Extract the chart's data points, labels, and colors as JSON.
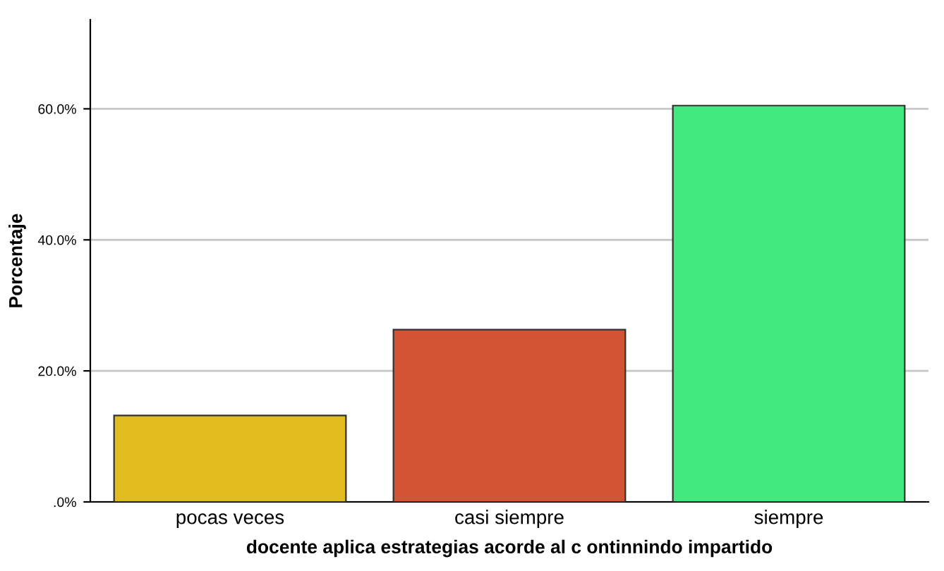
{
  "chart_data": {
    "type": "bar",
    "xlabel": "docente aplica estrategias acorde al c ontinnindo impartido",
    "ylabel": "Porcentaje",
    "categories": [
      "pocas veces",
      "casi siempre",
      "siempre"
    ],
    "values": [
      13.2,
      26.3,
      60.5
    ],
    "colors": [
      "#e0bc1e",
      "#d35434",
      "#41e97f"
    ],
    "ylim": [
      0,
      73.6
    ],
    "yticks": [
      {
        "value": 0,
        "label": ".0%"
      },
      {
        "value": 20,
        "label": "20.0%"
      },
      {
        "value": 40,
        "label": "40.0%"
      },
      {
        "value": 60,
        "label": "60.0%"
      }
    ],
    "grid": "y"
  }
}
